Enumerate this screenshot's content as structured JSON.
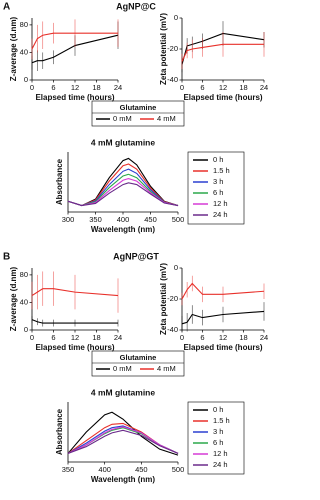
{
  "panels": [
    {
      "label": "A",
      "title": "AgNP@C",
      "legend_title": "Glutamine"
    },
    {
      "label": "B",
      "title": "AgNP@GT",
      "legend_title": "Glutamine"
    }
  ],
  "chart_data": [
    {
      "type": "line",
      "xlabel": "Elapsed time (hours)",
      "ylabel": "Z-average (d.nm)",
      "x": [
        0,
        1.5,
        3,
        6,
        12,
        24
      ],
      "xlim": [
        0,
        24
      ],
      "xticks": [
        0,
        6,
        12,
        18,
        24
      ],
      "ylim": [
        0,
        90
      ],
      "yticks": [
        0,
        40,
        80
      ],
      "series": [
        {
          "name": "0 mM",
          "color": "#000000",
          "values": [
            25,
            28,
            28,
            33,
            50,
            65
          ],
          "errors": [
            10,
            15,
            12,
            10,
            15,
            20
          ]
        },
        {
          "name": "4 mM",
          "color": "#e8302a",
          "values": [
            45,
            60,
            65,
            68,
            68,
            68
          ],
          "errors": [
            15,
            20,
            20,
            15,
            20,
            20
          ]
        }
      ]
    },
    {
      "type": "line",
      "xlabel": "Elapsed time (hours)",
      "ylabel": "Zeta potential (mV)",
      "x": [
        0,
        1.5,
        3,
        6,
        12,
        24
      ],
      "xlim": [
        0,
        24
      ],
      "xticks": [
        0,
        6,
        12,
        18,
        24
      ],
      "ylim": [
        -40,
        0
      ],
      "yticks": [
        -40,
        -20,
        0
      ],
      "series": [
        {
          "name": "0 mM",
          "color": "#000000",
          "values": [
            -30,
            -18,
            -17,
            -15,
            -10,
            -14
          ],
          "errors": [
            5,
            5,
            5,
            5,
            8,
            5
          ]
        },
        {
          "name": "4 mM",
          "color": "#e8302a",
          "values": [
            -28,
            -21,
            -20,
            -19,
            -17,
            -17
          ],
          "errors": [
            5,
            5,
            6,
            6,
            8,
            8
          ]
        }
      ]
    },
    {
      "type": "line",
      "title": "4 mM glutamine",
      "xlabel": "Wavelength (nm)",
      "ylabel": "Absorbance",
      "x": [
        300,
        325,
        350,
        375,
        400,
        410,
        425,
        450,
        475,
        500
      ],
      "xlim": [
        300,
        500
      ],
      "xticks": [
        300,
        350,
        400,
        450,
        500
      ],
      "ylim": [
        0,
        1.4
      ],
      "series": [
        {
          "name": "0 h",
          "color": "#000000",
          "values": [
            0.25,
            0.15,
            0.3,
            0.8,
            1.2,
            1.25,
            1.1,
            0.6,
            0.25,
            0.15
          ]
        },
        {
          "name": "1.5 h",
          "color": "#e8302a",
          "values": [
            0.25,
            0.15,
            0.28,
            0.72,
            1.08,
            1.12,
            1.0,
            0.56,
            0.24,
            0.15
          ]
        },
        {
          "name": "3 h",
          "color": "#2a3fd0",
          "values": [
            0.25,
            0.15,
            0.26,
            0.64,
            0.95,
            1.0,
            0.9,
            0.52,
            0.23,
            0.15
          ]
        },
        {
          "name": "6 h",
          "color": "#2aa84a",
          "values": [
            0.25,
            0.15,
            0.24,
            0.57,
            0.84,
            0.88,
            0.8,
            0.48,
            0.22,
            0.15
          ]
        },
        {
          "name": "12 h",
          "color": "#d63bd6",
          "values": [
            0.25,
            0.15,
            0.22,
            0.5,
            0.74,
            0.78,
            0.72,
            0.45,
            0.22,
            0.15
          ]
        },
        {
          "name": "24 h",
          "color": "#6a2a8a",
          "values": [
            0.25,
            0.15,
            0.2,
            0.44,
            0.64,
            0.68,
            0.64,
            0.42,
            0.21,
            0.15
          ]
        }
      ]
    },
    {
      "type": "line",
      "xlabel": "Elapsed time (hours)",
      "ylabel": "Z-average (d.nm)",
      "x": [
        0,
        1.5,
        3,
        6,
        12,
        24
      ],
      "xlim": [
        0,
        24
      ],
      "xticks": [
        0,
        6,
        12,
        18,
        24
      ],
      "ylim": [
        0,
        90
      ],
      "yticks": [
        0,
        40,
        80
      ],
      "series": [
        {
          "name": "0 mM",
          "color": "#000000",
          "values": [
            15,
            12,
            10,
            10,
            10,
            10
          ],
          "errors": [
            5,
            5,
            5,
            5,
            5,
            5
          ]
        },
        {
          "name": "4 mM",
          "color": "#e8302a",
          "values": [
            50,
            55,
            60,
            60,
            55,
            50
          ],
          "errors": [
            20,
            25,
            25,
            25,
            25,
            25
          ]
        }
      ]
    },
    {
      "type": "line",
      "xlabel": "Elapsed time (hours)",
      "ylabel": "Zeta potential (mV)",
      "x": [
        0,
        1.5,
        3,
        6,
        12,
        24
      ],
      "xlim": [
        0,
        24
      ],
      "xticks": [
        0,
        6,
        12,
        18,
        24
      ],
      "ylim": [
        -40,
        0
      ],
      "yticks": [
        -40,
        -20,
        0
      ],
      "series": [
        {
          "name": "0 mM",
          "color": "#000000",
          "values": [
            -36,
            -35,
            -30,
            -32,
            -30,
            -28
          ],
          "errors": [
            5,
            6,
            6,
            5,
            5,
            6
          ]
        },
        {
          "name": "4 mM",
          "color": "#e8302a",
          "values": [
            -20,
            -14,
            -10,
            -17,
            -17,
            -15
          ],
          "errors": [
            4,
            5,
            5,
            5,
            5,
            5
          ]
        }
      ]
    },
    {
      "type": "line",
      "title": "4 mM glutamine",
      "xlabel": "Wavelength (nm)",
      "ylabel": "Absorbance",
      "x": [
        350,
        375,
        400,
        410,
        425,
        450,
        475,
        500
      ],
      "xlim": [
        350,
        500
      ],
      "xticks": [
        350,
        400,
        450,
        500
      ],
      "ylim": [
        0,
        0.7
      ],
      "series": [
        {
          "name": "0 h",
          "color": "#000000",
          "values": [
            0.1,
            0.35,
            0.55,
            0.58,
            0.5,
            0.3,
            0.15,
            0.08
          ]
        },
        {
          "name": "1.5 h",
          "color": "#e8302a",
          "values": [
            0.1,
            0.25,
            0.4,
            0.44,
            0.45,
            0.35,
            0.2,
            0.1
          ]
        },
        {
          "name": "3 h",
          "color": "#2a3fd0",
          "values": [
            0.1,
            0.22,
            0.36,
            0.4,
            0.42,
            0.34,
            0.2,
            0.1
          ]
        },
        {
          "name": "6 h",
          "color": "#2aa84a",
          "values": [
            0.1,
            0.2,
            0.33,
            0.37,
            0.4,
            0.33,
            0.2,
            0.1
          ]
        },
        {
          "name": "12 h",
          "color": "#d63bd6",
          "values": [
            0.1,
            0.2,
            0.34,
            0.38,
            0.41,
            0.34,
            0.2,
            0.1
          ]
        },
        {
          "name": "24 h",
          "color": "#6a2a8a",
          "values": [
            0.1,
            0.18,
            0.3,
            0.34,
            0.37,
            0.31,
            0.19,
            0.1
          ]
        }
      ]
    }
  ]
}
